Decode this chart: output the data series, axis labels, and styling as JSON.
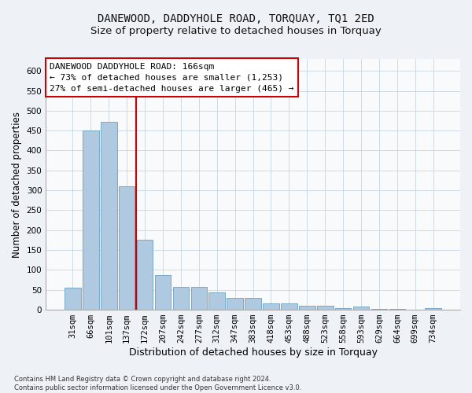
{
  "title_line1": "DANEWOOD, DADDYHOLE ROAD, TORQUAY, TQ1 2ED",
  "title_line2": "Size of property relative to detached houses in Torquay",
  "xlabel": "Distribution of detached houses by size in Torquay",
  "ylabel": "Number of detached properties",
  "categories": [
    "31sqm",
    "66sqm",
    "101sqm",
    "137sqm",
    "172sqm",
    "207sqm",
    "242sqm",
    "277sqm",
    "312sqm",
    "347sqm",
    "383sqm",
    "418sqm",
    "453sqm",
    "488sqm",
    "523sqm",
    "558sqm",
    "593sqm",
    "629sqm",
    "664sqm",
    "699sqm",
    "734sqm"
  ],
  "values": [
    55,
    450,
    472,
    310,
    175,
    88,
    58,
    58,
    43,
    30,
    30,
    15,
    15,
    10,
    10,
    5,
    8,
    3,
    2,
    0,
    5
  ],
  "bar_color": "#aec9e0",
  "bar_edge_color": "#7aaac8",
  "vline_x_index": 3.5,
  "vline_color": "#cc0000",
  "annotation_box_text": "DANEWOOD DADDYHOLE ROAD: 166sqm\n← 73% of detached houses are smaller (1,253)\n27% of semi-detached houses are larger (465) →",
  "ylim": [
    0,
    630
  ],
  "yticks": [
    0,
    50,
    100,
    150,
    200,
    250,
    300,
    350,
    400,
    450,
    500,
    550,
    600
  ],
  "footnote": "Contains HM Land Registry data © Crown copyright and database right 2024.\nContains public sector information licensed under the Open Government Licence v3.0.",
  "background_color": "#eef2f7",
  "plot_background_color": "#f8fafc",
  "grid_color": "#c8d4e0",
  "title_fontsize": 10,
  "subtitle_fontsize": 9.5,
  "tick_fontsize": 7.5,
  "ylabel_fontsize": 8.5,
  "xlabel_fontsize": 9,
  "annotation_fontsize": 8,
  "footnote_fontsize": 6
}
